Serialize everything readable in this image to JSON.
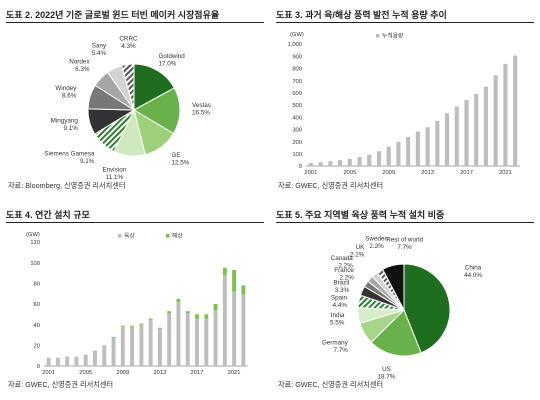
{
  "panels": {
    "p1": {
      "title": "도표 2. 2022년 기준 글로벌 윈드 터빈 메이커 시장점유율",
      "source": "자료: Bloomberg, 신영증권 리서치센터"
    },
    "p2": {
      "title": "도표 3. 과거 육/해상 풍력 발전 누적 용량 추이",
      "source": "자료: GWEC, 신영증권 리서치센터"
    },
    "p3": {
      "title": "도표 4. 연간 설치 규모",
      "source": "자료: GWEC, 신영증권 리서치센터"
    },
    "p4": {
      "title": "도표 5. 주요 지역별 육상 풍력 누적 설치 비중",
      "source": "자료: GWEC, 신영증권 리서치센터"
    }
  },
  "colors": {
    "dark_green": "#1f6e1f",
    "mid_green": "#6ab04c",
    "light_green": "#b8dc9e",
    "dark_gray": "#3a3a3a",
    "mid_gray": "#7a7a7a",
    "light_gray": "#c4c4c4",
    "bar_gray": "#bdbdbd",
    "offshore_green": "#7dc04b"
  },
  "chart_data": [
    {
      "type": "pie",
      "title": "도표 2. 2022년 기준 글로벌 윈드 터빈 메이커 시장점유율",
      "slices": [
        {
          "name": "Goldwind",
          "display": "17.0%",
          "value": 17.0,
          "color": "#1f6e1f",
          "pattern": "solid"
        },
        {
          "name": "Vestas",
          "display": "16.5%",
          "value": 16.5,
          "color": "#6ab04c",
          "pattern": "solid"
        },
        {
          "name": "GE",
          "display": "12.5%",
          "value": 12.5,
          "color": "#9ed07c",
          "pattern": "solid"
        },
        {
          "name": "Envision",
          "display": "11.1%",
          "value": 11.1,
          "color": "#cfe8bd",
          "pattern": "solid"
        },
        {
          "name": "Siemens Gamesa",
          "display": "9.1%",
          "value": 9.1,
          "color": "#2e7d32",
          "pattern": "hatch"
        },
        {
          "name": "Mingyang",
          "display": "9.1%",
          "value": 9.1,
          "color": "#333333",
          "pattern": "solid"
        },
        {
          "name": "Windey",
          "display": "8.6%",
          "value": 8.6,
          "color": "#777777",
          "pattern": "solid"
        },
        {
          "name": "Nordex",
          "display": "6.3%",
          "value": 6.3,
          "color": "#a6a6a6",
          "pattern": "solid"
        },
        {
          "name": "Sany",
          "display": "5.4%",
          "value": 5.4,
          "color": "#d3d3d3",
          "pattern": "solid"
        },
        {
          "name": "CRRC",
          "display": "4.3%",
          "value": 4.3,
          "color": "#555555",
          "pattern": "hatch"
        }
      ]
    },
    {
      "type": "bar",
      "title": "도표 3. 과거 육/해상 풍력 발전 누적 용량 추이",
      "unit": "(GW)",
      "legend": [
        "누적용량"
      ],
      "ylim": [
        0,
        1000
      ],
      "yticks": [
        "1,000",
        "900",
        "800",
        "700",
        "600",
        "500",
        "400",
        "300",
        "200",
        "100",
        "0"
      ],
      "ytick_values": [
        1000,
        900,
        800,
        700,
        600,
        500,
        400,
        300,
        200,
        100,
        0
      ],
      "xtick_labels": [
        "2001",
        "2005",
        "2009",
        "2013",
        "2017",
        "2021"
      ],
      "categories": [
        2001,
        2002,
        2003,
        2004,
        2005,
        2006,
        2007,
        2008,
        2009,
        2010,
        2011,
        2012,
        2013,
        2014,
        2015,
        2016,
        2017,
        2018,
        2019,
        2020,
        2021,
        2022
      ],
      "series": [
        {
          "name": "누적용량",
          "values": [
            24,
            31,
            39,
            48,
            59,
            74,
            94,
            121,
            159,
            198,
            238,
            283,
            318,
            370,
            433,
            488,
            540,
            591,
            650,
            743,
            837,
            906
          ]
        }
      ]
    },
    {
      "type": "bar",
      "title": "도표 4. 연간 설치 규모",
      "unit": "(GW)",
      "legend": [
        "육상",
        "해상"
      ],
      "ylim": [
        0,
        120
      ],
      "yticks": [
        "120",
        "100",
        "80",
        "60",
        "40",
        "20",
        "0"
      ],
      "ytick_values": [
        120,
        100,
        80,
        60,
        40,
        20,
        0
      ],
      "xtick_labels": [
        "2001",
        "2005",
        "2009",
        "2013",
        "2017",
        "2021"
      ],
      "categories": [
        2001,
        2002,
        2003,
        2004,
        2005,
        2006,
        2007,
        2008,
        2009,
        2010,
        2011,
        2012,
        2013,
        2014,
        2015,
        2016,
        2017,
        2018,
        2019,
        2020,
        2021,
        2022
      ],
      "stacked": true,
      "series": [
        {
          "name": "육상",
          "values": [
            8,
            8,
            9,
            9,
            11,
            15,
            20,
            27,
            38,
            38,
            40,
            45,
            36,
            51,
            62,
            51,
            46,
            46,
            54,
            88,
            72,
            69
          ]
        },
        {
          "name": "해상",
          "values": [
            0,
            0,
            0,
            0,
            0,
            0,
            0,
            1,
            1,
            1,
            1,
            1,
            1,
            2,
            3,
            2,
            4,
            4,
            6,
            7,
            21,
            9
          ]
        }
      ]
    },
    {
      "type": "pie",
      "title": "도표 5. 주요 지역별 육상 풍력 누적 설치 비중",
      "slices": [
        {
          "name": "China",
          "display": "44.0%",
          "value": 44.0,
          "color": "#1f6e1f",
          "pattern": "solid"
        },
        {
          "name": "US",
          "display": "18.7%",
          "value": 18.7,
          "color": "#6ab04c",
          "pattern": "solid"
        },
        {
          "name": "Germany",
          "display": "7.7%",
          "value": 7.7,
          "color": "#a8d58a",
          "pattern": "solid"
        },
        {
          "name": "India",
          "display": "5.5%",
          "value": 5.5,
          "color": "#d7ecc8",
          "pattern": "solid"
        },
        {
          "name": "Spain",
          "display": "4.4%",
          "value": 4.4,
          "color": "#2e7d32",
          "pattern": "hatch"
        },
        {
          "name": "Brazil",
          "display": "3.3%",
          "value": 3.3,
          "color": "#333333",
          "pattern": "solid"
        },
        {
          "name": "France",
          "display": "2.2%",
          "value": 2.2,
          "color": "#777777",
          "pattern": "solid"
        },
        {
          "name": "Canada",
          "display": "2.2%",
          "value": 2.2,
          "color": "#a6a6a6",
          "pattern": "solid"
        },
        {
          "name": "UK",
          "display": "2.2%",
          "value": 2.2,
          "color": "#d3d3d3",
          "pattern": "solid"
        },
        {
          "name": "Sweden",
          "display": "2.2%",
          "value": 2.2,
          "color": "#555555",
          "pattern": "hatch"
        },
        {
          "name": "Rest of world",
          "display": "7.7%",
          "value": 7.7,
          "color": "#111111",
          "pattern": "solid"
        }
      ]
    }
  ]
}
